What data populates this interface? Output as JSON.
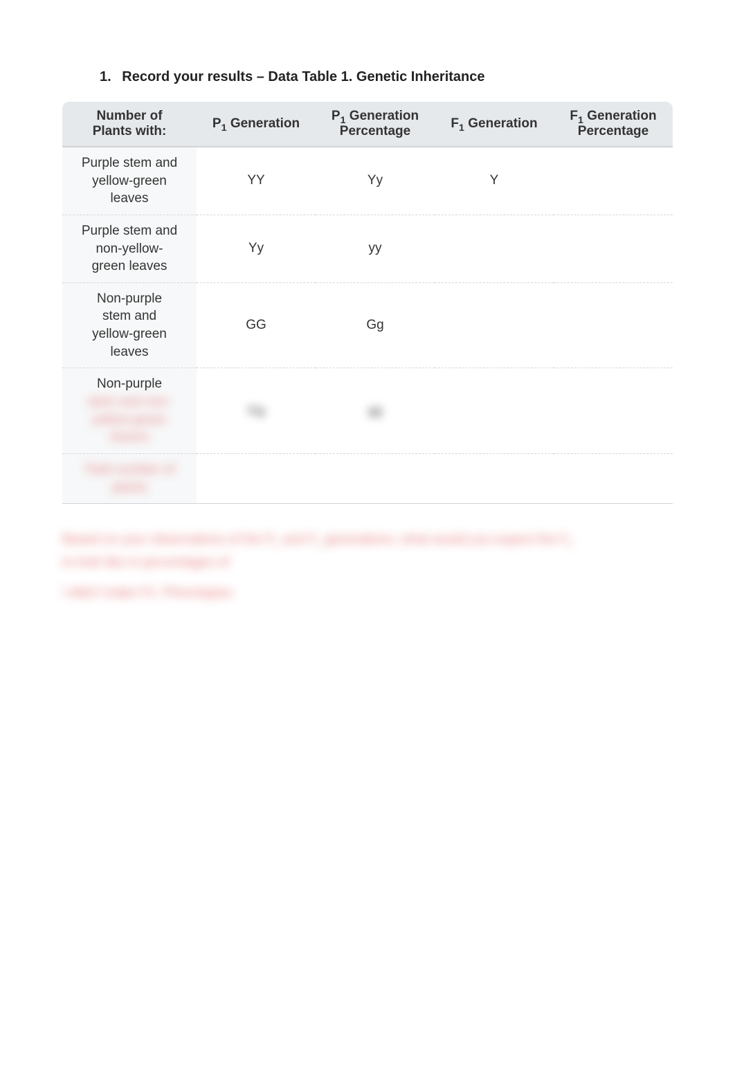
{
  "heading": {
    "number": "1.",
    "text": "Record your results – Data Table 1. Genetic Inheritance"
  },
  "table": {
    "columns": [
      {
        "label_line1": "Number of",
        "label_line2": "Plants with:",
        "width": "22%"
      },
      {
        "label_line1": "P",
        "sub": "1",
        "label_line2": "Generation",
        "two_line": false,
        "width": "19.5%"
      },
      {
        "label_line1": "P",
        "sub": "1",
        "label_line2": "Generation",
        "label_line3": "Percentage",
        "two_line": true,
        "width": "19.5%"
      },
      {
        "label_line1": "F",
        "sub": "1",
        "label_line2": "Generation",
        "two_line": false,
        "width": "19.5%"
      },
      {
        "label_line1": "F",
        "sub": "1",
        "label_line2": "Generation",
        "label_line3": "Percentage",
        "two_line": true,
        "width": "19.5%"
      }
    ],
    "rows": [
      {
        "label": "Purple stem and\nyellow-green\nleaves",
        "cells": [
          "YY",
          "Yy",
          "Y",
          ""
        ],
        "blurred_label": false,
        "blurred_cells": [
          false,
          false,
          false,
          false
        ]
      },
      {
        "label": "Purple stem and\nnon-yellow-\ngreen leaves",
        "cells": [
          "Yy",
          "yy",
          "",
          ""
        ],
        "blurred_label": false,
        "blurred_cells": [
          false,
          false,
          false,
          false
        ]
      },
      {
        "label": "Non-purple\nstem and\nyellow-green\nleaves",
        "cells": [
          "GG",
          "Gg",
          "",
          ""
        ],
        "blurred_label": false,
        "blurred_cells": [
          false,
          false,
          false,
          false
        ]
      },
      {
        "label": "Non-purple",
        "label_extra_blurred": "stem and non-\nyellow-green\nleaves",
        "cells": [
          "Gg",
          "gg",
          "",
          ""
        ],
        "blurred_label": false,
        "blurred_cells": [
          true,
          true,
          false,
          false
        ]
      },
      {
        "label": "Total number of\nplants",
        "cells": [
          "",
          "",
          "",
          ""
        ],
        "blurred_label": true,
        "blurred_cells": [
          false,
          false,
          false,
          false
        ]
      }
    ]
  },
  "question": {
    "line1_a": "Based on your observations of the P",
    "line1_sub1": "1",
    "line1_b": " and F",
    "line1_sub2": "1",
    "line1_c": " generations, what would you expect the F",
    "line1_sub3": "2",
    "line2": "to look like in percentages of",
    "answer_line": " I didn't make F2. Phenotypes"
  },
  "styling": {
    "page_bg": "#ffffff",
    "header_bg": "#e6e9ec",
    "header_font_size": 19,
    "body_font_size": 19,
    "heading_font_size": 20,
    "text_color": "#333333",
    "row_divider_color": "#d6d6d6",
    "blurred_text_color": "#e36a6a",
    "font_family": "Arial"
  }
}
